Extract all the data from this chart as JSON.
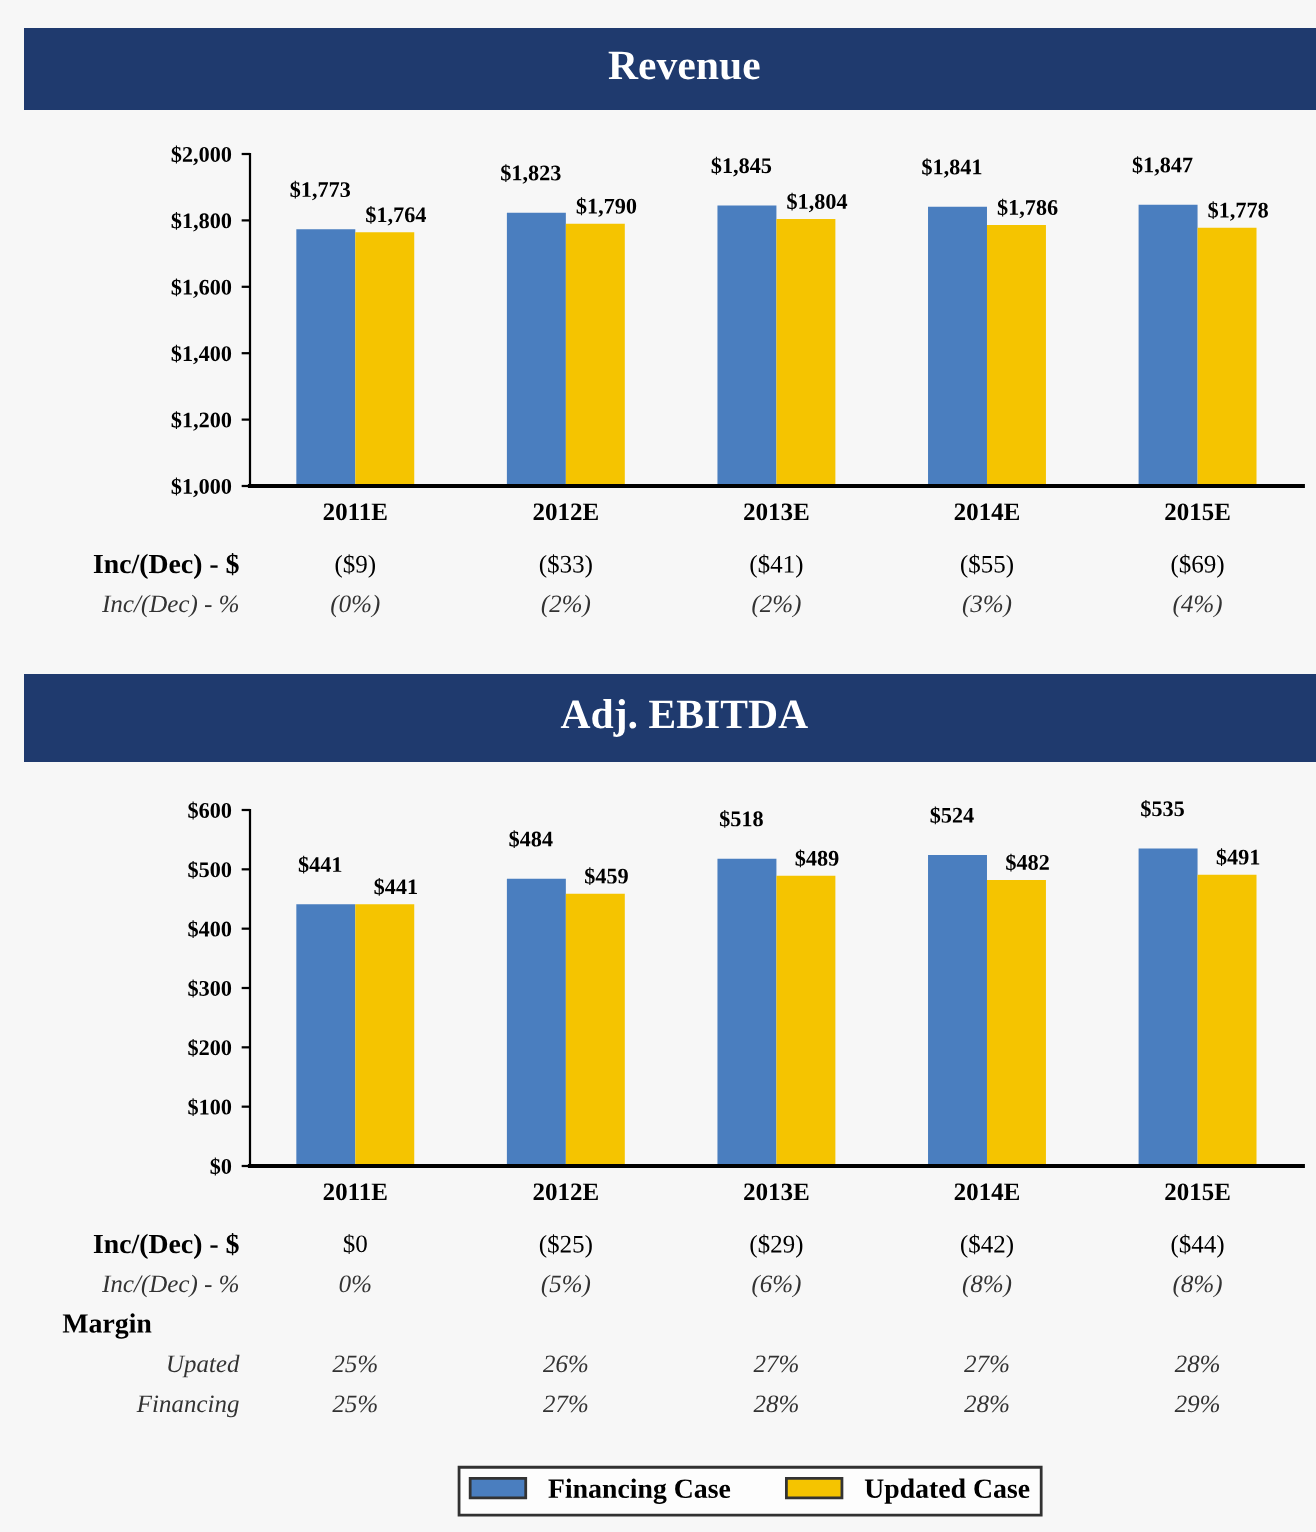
{
  "chart_data": [
    {
      "type": "bar",
      "title": "Revenue",
      "categories": [
        "2011E",
        "2012E",
        "2013E",
        "2014E",
        "2015E"
      ],
      "series": [
        {
          "color": "#4a7ebf",
          "values": [
            1773,
            1823,
            1845,
            1841,
            1847
          ],
          "value_labels": [
            "$1,773",
            "$1,823",
            "$1,845",
            "$1,841",
            "$1,847"
          ]
        },
        {
          "color": "#f5c400",
          "values": [
            1764,
            1790,
            1804,
            1786,
            1778
          ],
          "value_labels": [
            "$1,764",
            "$1,790",
            "$1,804",
            "$1,786",
            "$1,778"
          ]
        }
      ],
      "ylim": [
        1000,
        2000
      ],
      "yticks": [
        {
          "value": 1000,
          "label": "$1,000"
        },
        {
          "value": 1200,
          "label": "$1,200"
        },
        {
          "value": 1400,
          "label": "$1,400"
        },
        {
          "value": 1600,
          "label": "$1,600"
        },
        {
          "value": 1800,
          "label": "$1,800"
        },
        {
          "value": 2000,
          "label": "$2,000"
        }
      ],
      "grid": false,
      "legend": false,
      "annotations": [
        "Inc/(Dec) - $",
        "($9)",
        "($33)",
        "($41)",
        "($55)",
        "($69)",
        "Inc/(Dec) - %",
        "(0%)",
        "(2%)",
        "(2%)",
        "(3%)",
        "(4%)"
      ]
    },
    {
      "type": "bar",
      "title": "Adj. EBITDA",
      "categories": [
        "2011E",
        "2012E",
        "2013E",
        "2014E",
        "2015E"
      ],
      "series": [
        {
          "name": "Financing Case",
          "color": "#4a7ebf",
          "values": [
            441,
            484,
            518,
            524,
            535
          ],
          "value_labels": [
            "$441",
            "$484",
            "$518",
            "$524",
            "$535"
          ]
        },
        {
          "name": "Updated Case",
          "color": "#f5c400",
          "values": [
            441,
            459,
            489,
            482,
            491
          ],
          "value_labels": [
            "$441",
            "$459",
            "$489",
            "$482",
            "$491"
          ]
        }
      ],
      "ylim": [
        0,
        600
      ],
      "yticks": [
        {
          "value": 0,
          "label": "$0"
        },
        {
          "value": 100,
          "label": "$100"
        },
        {
          "value": 200,
          "label": "$200"
        },
        {
          "value": 300,
          "label": "$300"
        },
        {
          "value": 400,
          "label": "$400"
        },
        {
          "value": 500,
          "label": "$500"
        },
        {
          "value": 600,
          "label": "$600"
        }
      ],
      "grid": false,
      "legend": "bottom",
      "annotations": [
        "Inc/(Dec) - $",
        "$0",
        "($25)",
        "($29)",
        "($42)",
        "($44)",
        "Inc/(Dec) - %",
        "0%",
        "(5%)",
        "(6%)",
        "(8%)",
        "(8%)",
        "Margin",
        "Upated",
        "25%",
        "26%",
        "27%",
        "27%",
        "28%",
        "Financing",
        "25%",
        "27%",
        "28%",
        "28%",
        "29%"
      ]
    }
  ]
}
